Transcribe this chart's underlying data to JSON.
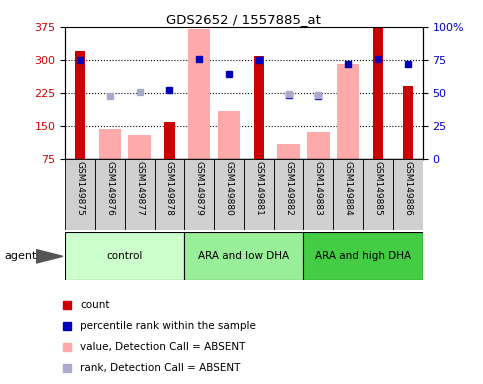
{
  "title": "GDS2652 / 1557885_at",
  "samples": [
    "GSM149875",
    "GSM149876",
    "GSM149877",
    "GSM149878",
    "GSM149879",
    "GSM149880",
    "GSM149881",
    "GSM149882",
    "GSM149883",
    "GSM149884",
    "GSM149885",
    "GSM149886"
  ],
  "groups": [
    {
      "label": "control",
      "indices": [
        0,
        1,
        2,
        3
      ],
      "color": "#ccffcc"
    },
    {
      "label": "ARA and low DHA",
      "indices": [
        4,
        5,
        6,
        7
      ],
      "color": "#99ee99"
    },
    {
      "label": "ARA and high DHA",
      "indices": [
        8,
        9,
        10,
        11
      ],
      "color": "#44cc44"
    }
  ],
  "red_bars": [
    320,
    null,
    null,
    160,
    null,
    null,
    308,
    null,
    null,
    null,
    375,
    240
  ],
  "pink_bars": [
    null,
    143,
    130,
    null,
    370,
    185,
    null,
    110,
    138,
    290,
    null,
    null
  ],
  "blue_squares": [
    300,
    null,
    null,
    232,
    302,
    268,
    300,
    220,
    218,
    292,
    302,
    292
  ],
  "purple_squares": [
    null,
    218,
    228,
    null,
    null,
    null,
    null,
    222,
    220,
    null,
    null,
    null
  ],
  "ylim": [
    75,
    375
  ],
  "yticks_left": [
    75,
    150,
    225,
    300,
    375
  ],
  "yticks_right_vals": [
    0,
    25,
    50,
    75,
    100
  ],
  "yticks_right_pos": [
    75,
    150,
    225,
    300,
    375
  ],
  "ylabel_left_color": "#cc0000",
  "ylabel_right_color": "#0000cc",
  "hlines": [
    150,
    225,
    300
  ],
  "red_bar_color": "#cc0000",
  "pink_bar_color": "#ffaaaa",
  "blue_sq_color": "#0000bb",
  "purple_sq_color": "#aaaacc",
  "legend_labels": [
    "count",
    "percentile rank within the sample",
    "value, Detection Call = ABSENT",
    "rank, Detection Call = ABSENT"
  ],
  "legend_colors": [
    "#cc0000",
    "#0000bb",
    "#ffaaaa",
    "#aaaacc"
  ]
}
